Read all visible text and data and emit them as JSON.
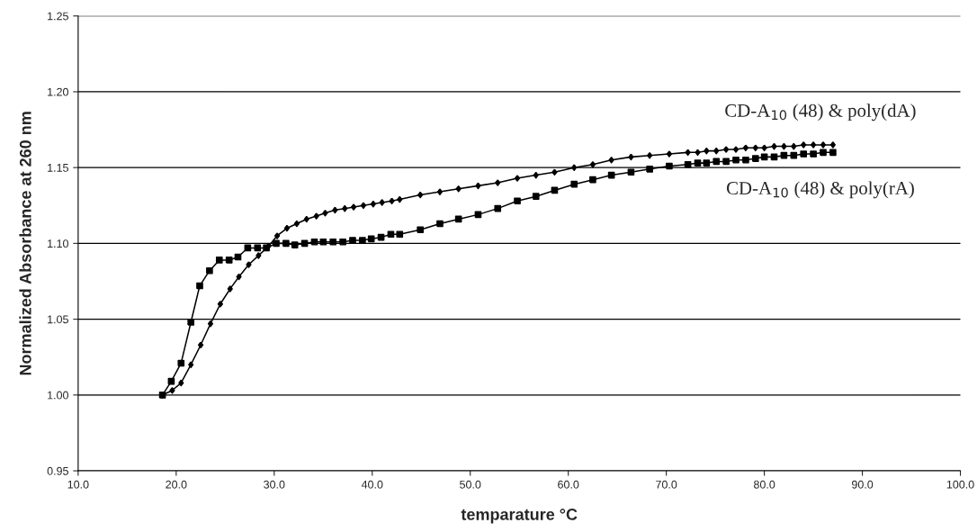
{
  "chart_data": {
    "type": "line",
    "xlabel": "temparature °C",
    "ylabel": "Normalized Absorbance at 260 nm",
    "xlim": [
      10,
      100
    ],
    "xticks": [
      {
        "value": 10,
        "label": "10.0"
      },
      {
        "value": 20,
        "label": "20.0"
      },
      {
        "value": 30,
        "label": "30.0"
      },
      {
        "value": 40,
        "label": "40.0"
      },
      {
        "value": 50,
        "label": "50.0"
      },
      {
        "value": 60,
        "label": "60.0"
      },
      {
        "value": 70,
        "label": "70.0"
      },
      {
        "value": 80,
        "label": "80.0"
      },
      {
        "value": 90,
        "label": "90.0"
      },
      {
        "value": 100,
        "label": "100.0"
      }
    ],
    "ylim": [
      0.95,
      1.25
    ],
    "yticks": [
      0.95,
      {
        "value": 1.0,
        "label": "1.00"
      },
      1.05,
      {
        "value": 1.1,
        "label": "1.10"
      },
      1.15,
      {
        "value": 1.2,
        "label": "1.20"
      },
      1.25
    ],
    "grid": "y",
    "legend": false,
    "series": [
      {
        "name": "CD-A$_{10}$ (48) & poly(dA)",
        "color": "#000000",
        "marker": "diamond",
        "x": [
          18.6,
          19.6,
          20.5,
          21.5,
          22.5,
          23.5,
          24.5,
          25.5,
          26.4,
          27.4,
          28.4,
          29.4,
          30.3,
          31.3,
          32.3,
          33.3,
          34.3,
          35.2,
          36.2,
          37.2,
          38.1,
          39.1,
          40.1,
          41.0,
          42.0,
          42.8,
          44.9,
          46.9,
          48.8,
          50.8,
          52.8,
          54.8,
          56.7,
          58.6,
          60.6,
          62.5,
          64.4,
          66.4,
          68.3,
          70.3,
          72.2,
          73.2,
          74.1,
          75.1,
          76.1,
          77.1,
          78.1,
          79.1,
          80.0,
          81.0,
          82.0,
          83.0,
          84.0,
          85.0,
          86.0,
          87.0
        ],
        "values": [
          1.0,
          1.003,
          1.008,
          1.02,
          1.033,
          1.047,
          1.06,
          1.07,
          1.078,
          1.086,
          1.092,
          1.098,
          1.105,
          1.11,
          1.113,
          1.116,
          1.118,
          1.12,
          1.122,
          1.123,
          1.124,
          1.125,
          1.126,
          1.127,
          1.128,
          1.129,
          1.132,
          1.134,
          1.136,
          1.138,
          1.14,
          1.143,
          1.145,
          1.147,
          1.15,
          1.152,
          1.155,
          1.157,
          1.158,
          1.159,
          1.16,
          1.16,
          1.161,
          1.161,
          1.162,
          1.162,
          1.163,
          1.163,
          1.163,
          1.164,
          1.164,
          1.164,
          1.165,
          1.165,
          1.165,
          1.165
        ]
      },
      {
        "name": "CD-A$_{10}$ (48) & poly(rA)",
        "color": "#000000",
        "marker": "square",
        "x": [
          18.6,
          19.5,
          20.5,
          21.5,
          22.4,
          23.4,
          24.4,
          25.4,
          26.3,
          27.3,
          28.3,
          29.2,
          30.2,
          31.2,
          32.1,
          33.1,
          34.1,
          35.0,
          36.0,
          37.0,
          38.0,
          39.0,
          39.9,
          40.9,
          41.9,
          42.8,
          44.9,
          46.9,
          48.8,
          50.8,
          52.8,
          54.8,
          56.7,
          58.6,
          60.6,
          62.5,
          64.4,
          66.4,
          68.3,
          70.3,
          72.2,
          73.2,
          74.1,
          75.1,
          76.1,
          77.1,
          78.1,
          79.1,
          80.0,
          81.0,
          82.0,
          83.0,
          84.0,
          85.0,
          86.0,
          87.0
        ],
        "values": [
          1.0,
          1.009,
          1.021,
          1.048,
          1.072,
          1.082,
          1.089,
          1.089,
          1.091,
          1.097,
          1.097,
          1.097,
          1.1,
          1.1,
          1.099,
          1.1,
          1.101,
          1.101,
          1.101,
          1.101,
          1.102,
          1.102,
          1.103,
          1.104,
          1.106,
          1.106,
          1.109,
          1.113,
          1.116,
          1.119,
          1.123,
          1.128,
          1.131,
          1.135,
          1.139,
          1.142,
          1.145,
          1.147,
          1.149,
          1.151,
          1.152,
          1.153,
          1.153,
          1.154,
          1.154,
          1.155,
          1.155,
          1.156,
          1.157,
          1.157,
          1.158,
          1.158,
          1.159,
          1.159,
          1.16,
          1.16
        ]
      }
    ]
  }
}
